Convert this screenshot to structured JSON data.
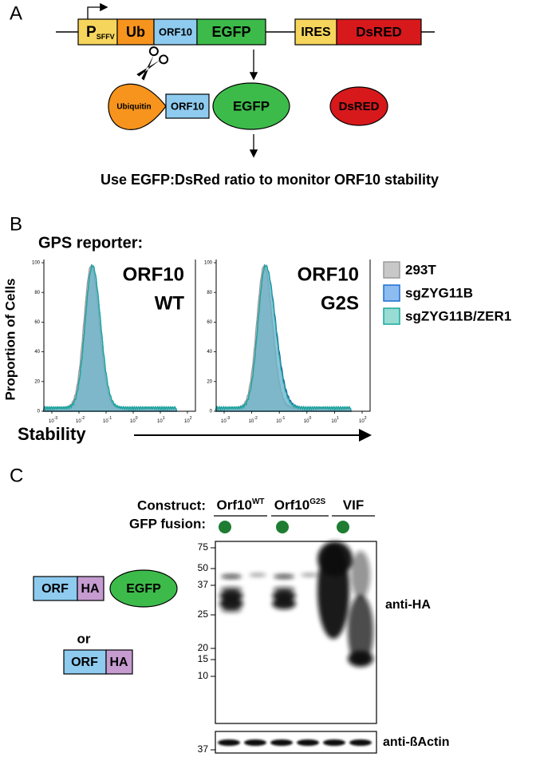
{
  "panel_a": {
    "label": "A",
    "construct": {
      "promoter": "P",
      "promoter_sub": "SFFV",
      "ub": "Ub",
      "orf": "ORF10",
      "egfp": "EGFP",
      "ires": "IRES",
      "dsred": "DsRED"
    },
    "product": {
      "ubiquitin": "Ubiquitin",
      "orf": "ORF10",
      "egfp": "EGFP",
      "dsred": "DsRED"
    },
    "caption": "Use EGFP:DsRed ratio to monitor ORF10 stability"
  },
  "panel_b": {
    "label": "B",
    "title": "GPS reporter:",
    "y_label": "Proportion of Cells",
    "x_label": "Stability",
    "yticks": [
      "100",
      "80",
      "60",
      "40",
      "20",
      "0"
    ],
    "x_base": "10",
    "x_exponents": [
      "-3",
      "-2",
      "-1",
      "0",
      "1",
      "2"
    ],
    "plots": [
      {
        "lines": [
          "ORF10",
          "WT"
        ]
      },
      {
        "lines": [
          "ORF10",
          "G2S"
        ]
      }
    ],
    "legend": [
      "293T",
      "sgZYG11B",
      "sgZYG11B/ZER1"
    ]
  },
  "panel_c": {
    "label": "C",
    "construct_label": "Construct:",
    "fusion_label": "GFP fusion:",
    "constructs": [
      {
        "name": "Orf10",
        "sup": "WT"
      },
      {
        "name": "Orf10",
        "sup": "G2S"
      },
      {
        "name": "VIF"
      }
    ],
    "markers": [
      "75",
      "50",
      "37",
      "25",
      "20",
      "15",
      "10"
    ],
    "actin_marker": "37",
    "blot_labels": [
      "anti-HA",
      "anti-ßActin"
    ],
    "schematic": {
      "orf1": "ORF",
      "ha1": "HA",
      "egfp": "EGFP",
      "or": "or",
      "orf2": "ORF",
      "ha2": "HA"
    }
  }
}
